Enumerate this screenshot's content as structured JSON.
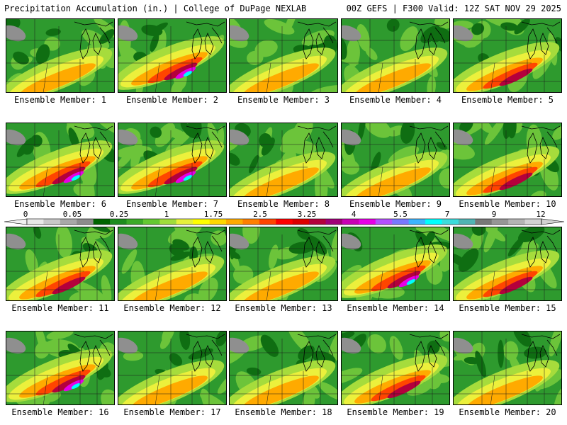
{
  "header": {
    "left_title": "Precipitation Accumulation (in.) | College of DuPage NEXLAB",
    "right_title": "00Z GEFS | F300 Valid: 12Z SAT NOV 29 2025"
  },
  "colorbar": {
    "tick_labels": [
      "0",
      "0.05",
      "0.25",
      "1",
      "1.75",
      "2.5",
      "3.25",
      "4",
      "5.5",
      "7",
      "9",
      "12"
    ],
    "colors": [
      "#e8e8e8",
      "#c8c8c8",
      "#a8a8a8",
      "#8c8c8c",
      "#006400",
      "#1e8c1e",
      "#3caa28",
      "#64c832",
      "#a0dc3c",
      "#e6f03c",
      "#ffff00",
      "#ffd700",
      "#ffaa00",
      "#ff7f00",
      "#ff4500",
      "#ff0000",
      "#dc0000",
      "#b4003c",
      "#a00078",
      "#c800b4",
      "#e600e6",
      "#b450ff",
      "#7878ff",
      "#3cb4ff",
      "#00ffff",
      "#3cdcdc",
      "#50b4b4",
      "#787878",
      "#969696",
      "#b4b4b4",
      "#d2d2d2"
    ]
  },
  "panels": [
    {
      "label": "Ensemble Member: 1",
      "scheme": "dry"
    },
    {
      "label": "Ensemble Member: 2",
      "scheme": "wet"
    },
    {
      "label": "Ensemble Member: 3",
      "scheme": "dry"
    },
    {
      "label": "Ensemble Member: 4",
      "scheme": "dry"
    },
    {
      "label": "Ensemble Member: 5",
      "scheme": "mod"
    },
    {
      "label": "Ensemble Member: 6",
      "scheme": "wet"
    },
    {
      "label": "Ensemble Member: 7",
      "scheme": "wet"
    },
    {
      "label": "Ensemble Member: 8",
      "scheme": "dry"
    },
    {
      "label": "Ensemble Member: 9",
      "scheme": "dry"
    },
    {
      "label": "Ensemble Member: 10",
      "scheme": "mod"
    },
    {
      "label": "Ensemble Member: 11",
      "scheme": "mod"
    },
    {
      "label": "Ensemble Member: 12",
      "scheme": "dry"
    },
    {
      "label": "Ensemble Member: 13",
      "scheme": "dry"
    },
    {
      "label": "Ensemble Member: 14",
      "scheme": "wet"
    },
    {
      "label": "Ensemble Member: 15",
      "scheme": "mod"
    },
    {
      "label": "Ensemble Member: 16",
      "scheme": "wet"
    },
    {
      "label": "Ensemble Member: 17",
      "scheme": "dry"
    },
    {
      "label": "Ensemble Member: 18",
      "scheme": "dry"
    },
    {
      "label": "Ensemble Member: 19",
      "scheme": "mod"
    },
    {
      "label": "Ensemble Member: 20",
      "scheme": "dry"
    }
  ]
}
